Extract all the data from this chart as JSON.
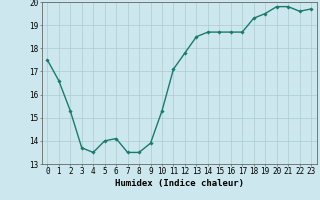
{
  "x": [
    0,
    1,
    2,
    3,
    4,
    5,
    6,
    7,
    8,
    9,
    10,
    11,
    12,
    13,
    14,
    15,
    16,
    17,
    18,
    19,
    20,
    21,
    22,
    23
  ],
  "y": [
    17.5,
    16.6,
    15.3,
    13.7,
    13.5,
    14.0,
    14.1,
    13.5,
    13.5,
    13.9,
    15.3,
    17.1,
    17.8,
    18.5,
    18.7,
    18.7,
    18.7,
    18.7,
    19.3,
    19.5,
    19.8,
    19.8,
    19.6,
    19.7
  ],
  "line_color": "#1a7a6e",
  "marker": "D",
  "marker_size": 1.8,
  "line_width": 1.0,
  "bg_color": "#cce8ee",
  "grid_color": "#aacccc",
  "xlabel": "Humidex (Indice chaleur)",
  "xlim": [
    -0.5,
    23.5
  ],
  "ylim": [
    13,
    20
  ],
  "yticks": [
    13,
    14,
    15,
    16,
    17,
    18,
    19,
    20
  ],
  "xlabel_fontsize": 6.5,
  "tick_fontsize": 5.5
}
